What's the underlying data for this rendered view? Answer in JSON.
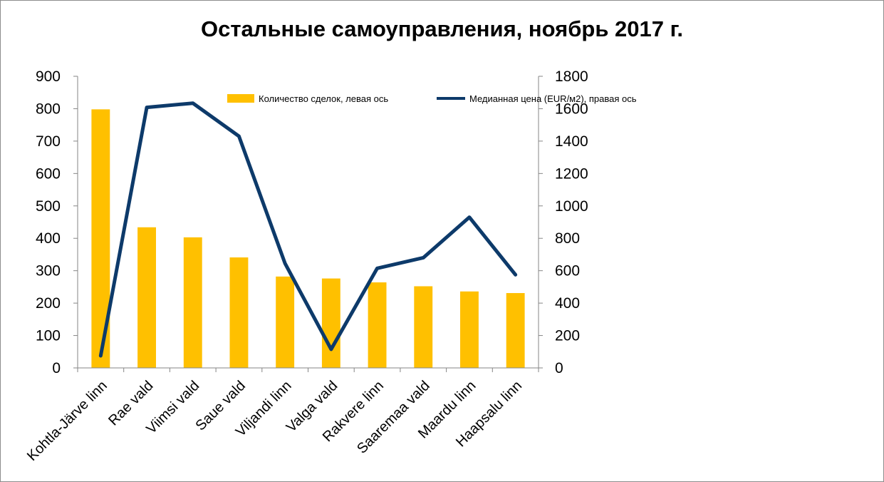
{
  "chart_data": {
    "type": "bar+line",
    "title": "Остальные самоуправления, ноябрь 2017 г.",
    "categories": [
      "Kohtla-Järve linn",
      "Rae vald",
      "Viimsi vald",
      "Saue vald",
      "Viljandi linn",
      "Valga vald",
      "Rakvere linn",
      "Saaremaa vald",
      "Maardu linn",
      "Haapsalu linn"
    ],
    "series": [
      {
        "name": "Количество сделок, левая ось",
        "type": "bar",
        "axis": "left",
        "color": "#FFC000",
        "values": [
          798,
          434,
          403,
          341,
          282,
          276,
          264,
          252,
          236,
          231
        ]
      },
      {
        "name": "Медианная цена (EUR/м2), правая ось",
        "type": "line",
        "axis": "right",
        "color": "#0D3A6A",
        "values": [
          75,
          1608,
          1634,
          1430,
          645,
          115,
          615,
          680,
          930,
          575
        ]
      }
    ],
    "y_left": {
      "min": 0,
      "max": 900,
      "step": 100,
      "ticks": [
        "0",
        "100",
        "200",
        "300",
        "400",
        "500",
        "600",
        "700",
        "800",
        "900"
      ]
    },
    "y_right": {
      "min": 0,
      "max": 1800,
      "step": 200,
      "ticks": [
        "0",
        "200",
        "400",
        "600",
        "800",
        "1000",
        "1200",
        "1400",
        "1600",
        "1800"
      ]
    },
    "legend_position": "top-center",
    "grid": false
  }
}
